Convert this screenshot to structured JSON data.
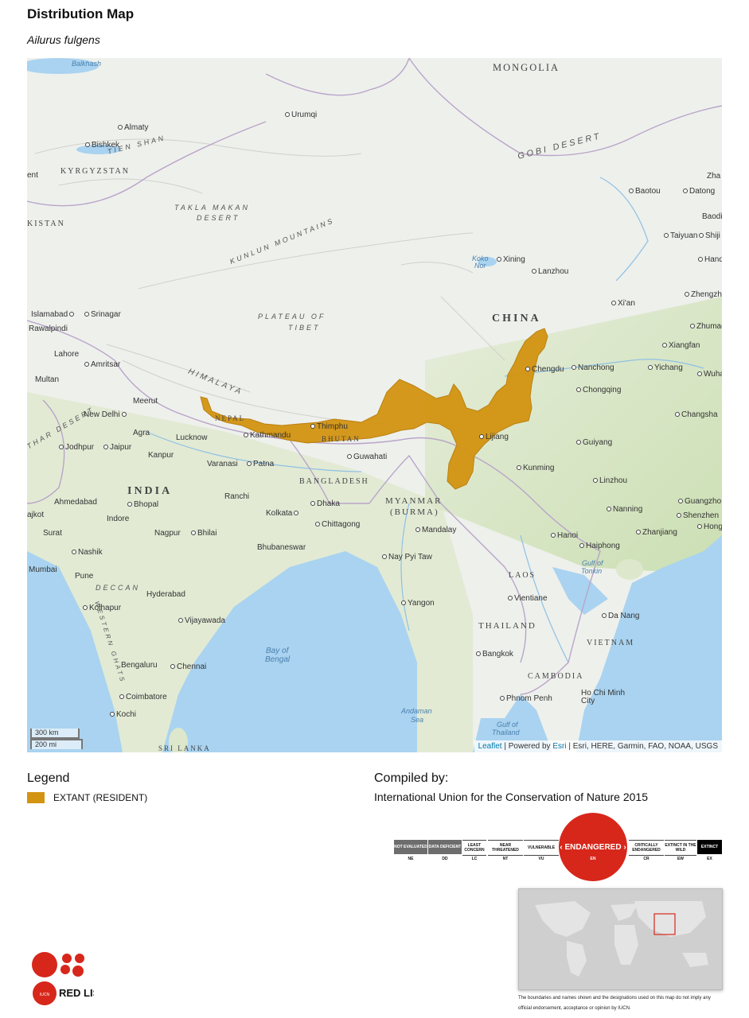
{
  "header": {
    "title": "Distribution Map",
    "species": "Ailurus fulgens"
  },
  "map": {
    "countries": [
      "MONGOLIA",
      "CHINA",
      "INDIA",
      "BANGLADESH",
      "MYANMAR",
      "(BURMA)",
      "BHUTAN",
      "NEPAL",
      "LAOS",
      "THAILAND",
      "VIETNAM",
      "CAMBODIA",
      "KYRGYZSTAN",
      "KISTAN",
      "SRI LANKA"
    ],
    "physical": [
      "GOBI DESERT",
      "TAKLA MAKAN",
      "DESERT",
      "KUNLUN MOUNTAINS",
      "PLATEAU OF",
      "TIBET",
      "HIMALAYA",
      "TIEN SHAN",
      "DECCAN",
      "WESTERN GHATS",
      "THAR DESERT"
    ],
    "water": [
      "Bay of",
      "Bengal",
      "Andaman",
      "Sea",
      "Gulf of",
      "Thailand",
      "Gulf of",
      "Tonkin",
      "Koko",
      "Nor",
      "Balkhash"
    ],
    "cities": [
      "Urumqi",
      "Almaty",
      "Bishkek",
      "Baotou",
      "Datong",
      "Taiyuan",
      "Shiji",
      "Handa",
      "Xining",
      "Lanzhou",
      "Xi'an",
      "Zhengzho",
      "Zhumad",
      "Xiangfan",
      "Chengdu",
      "Nanchong",
      "Yichang",
      "Wuha",
      "Chongqing",
      "Changsha",
      "Guiyang",
      "Kunming",
      "Linzhou",
      "Nanning",
      "Guangzho",
      "Shenzhen",
      "Hong K",
      "Zhanjiang",
      "Hanoi",
      "Haiphong",
      "Da Nang",
      "Vientiane",
      "Bangkok",
      "Phnom Penh",
      "Ho Chi Minh City",
      "Yangon",
      "Nay Pyi Taw",
      "Mandalay",
      "Lijiang",
      "Dhaka",
      "Chittagong",
      "Guwahati",
      "Thimphu",
      "Kathmandu",
      "Patna",
      "Varanasi",
      "Lucknow",
      "Kanpur",
      "New Delhi",
      "Agra",
      "Jaipur",
      "Jodhpur",
      "Meerut",
      "Lahore",
      "Amritsar",
      "Multan",
      "Islamabad",
      "Rawalpindi",
      "Srinagar",
      "Ahmedabad",
      "Bhopal",
      "Indore",
      "Ranchi",
      "Kolkata",
      "Nagpur",
      "Bhilai",
      "Bhubaneswar",
      "Surat",
      "Nashik",
      "Mumbai",
      "Pune",
      "Hyderabad",
      "Kolhapur",
      "Vijayawada",
      "Bengaluru",
      "Chennai",
      "Coimbatore",
      "Kochi",
      "ajkot",
      "ent",
      "Zha",
      "Baodi"
    ],
    "scale": {
      "km": "300 km",
      "mi": "200 mi"
    },
    "attribution": {
      "leaflet": "Leaflet",
      "powered": "| Powered by",
      "esri": "Esri",
      "rest": "| Esri, HERE, Garmin, FAO, NOAA, USGS"
    },
    "colors": {
      "land": "#eef0ec",
      "water": "#a9d3f0",
      "range": "#d39411",
      "veg": "#cfe2b4"
    }
  },
  "legend": {
    "title": "Legend",
    "items": [
      {
        "label": "EXTANT (RESIDENT)",
        "color": "#d39411"
      }
    ]
  },
  "compiled": {
    "title": "Compiled by:",
    "body": "International Union for the Conservation of Nature 2015"
  },
  "redlist": {
    "current": "ENDANGERED",
    "categories": [
      {
        "label": "NOT EVALUATED",
        "code": "NE"
      },
      {
        "label": "DATA DEFICIENT",
        "code": "DD"
      },
      {
        "label": "LEAST CONCERN",
        "code": "LC"
      },
      {
        "label": "NEAR THREATENED",
        "code": "NT"
      },
      {
        "label": "VULNERABLE",
        "code": "VU"
      },
      {
        "label": "ENDANGERED",
        "code": "EN"
      },
      {
        "label": "CRITICALLY ENDANGERED",
        "code": "CR"
      },
      {
        "label": "EXTINCT IN THE WILD",
        "code": "EW"
      },
      {
        "label": "EXTINCT",
        "code": "EX"
      }
    ]
  },
  "disclaimer": "The boundaries and names shown and the designations used on this map do not imply any official endorsement, acceptance or opinion by IUCN.",
  "logo": {
    "text": "RED LIST",
    "small": "IUCN"
  }
}
